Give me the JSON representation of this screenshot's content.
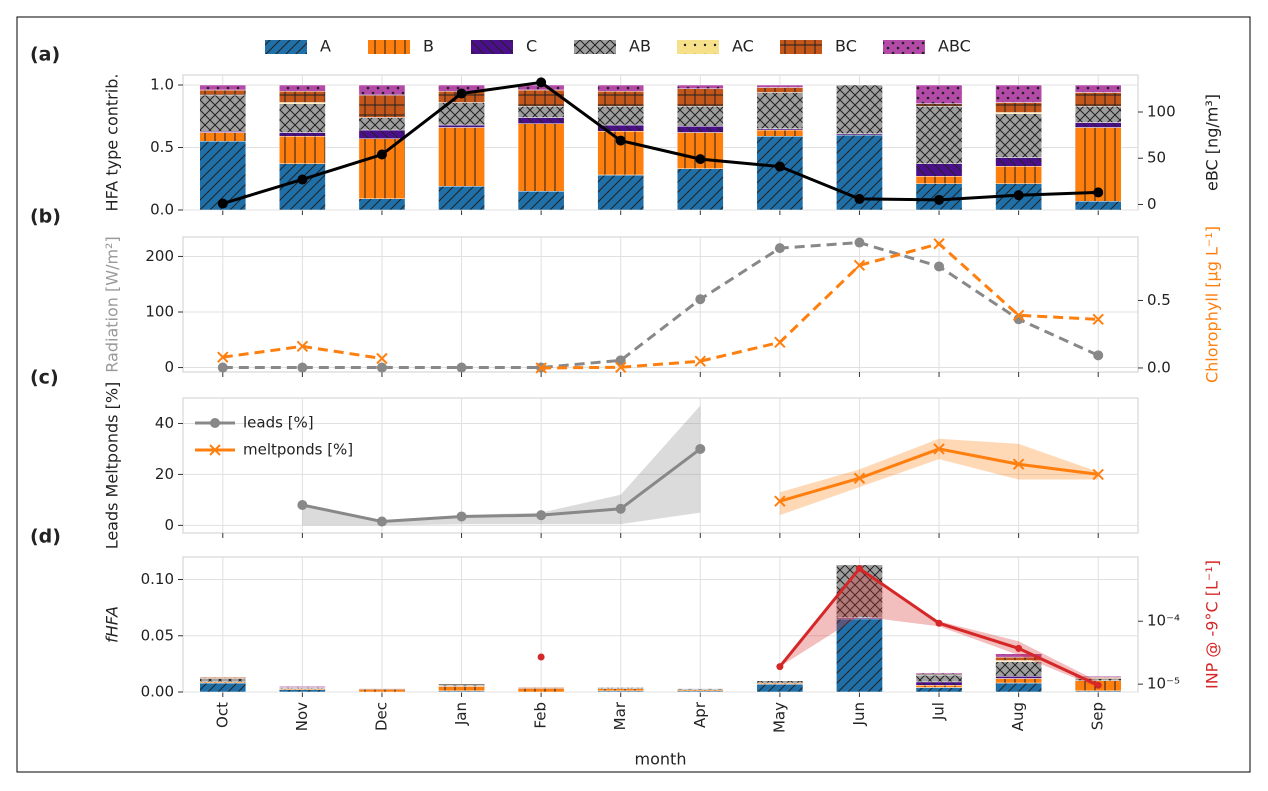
{
  "chart_data": [
    {
      "type": "bar",
      "label": "(a)",
      "stacked": true,
      "y_label": "HFA type contrib.",
      "y2_label": "eBC [ng/m³]",
      "ylim": [
        0,
        1.08
      ],
      "yticks": [
        {
          "value": 0,
          "label": "0.0"
        },
        0.5,
        {
          "value": 1,
          "label": "1.0"
        }
      ],
      "y2lim": [
        -6,
        140
      ],
      "y2ticks": [
        0,
        50,
        100
      ],
      "grid": true,
      "series": [
        {
          "name": "A",
          "color": "#1f6fa8",
          "hatch": "/",
          "values": [
            0.55,
            0.37,
            0.09,
            0.19,
            0.15,
            0.28,
            0.33,
            0.59,
            0.6,
            0.21,
            0.21,
            0.07
          ]
        },
        {
          "name": "B",
          "color": "#ff7f0e",
          "hatch": "|",
          "values": [
            0.07,
            0.22,
            0.48,
            0.47,
            0.54,
            0.35,
            0.29,
            0.05,
            0.0,
            0.06,
            0.14,
            0.59
          ]
        },
        {
          "name": "C",
          "color": "#4b0f8c",
          "hatch": "\\",
          "values": [
            0.01,
            0.03,
            0.07,
            0.02,
            0.05,
            0.05,
            0.05,
            0.01,
            0.01,
            0.1,
            0.07,
            0.04
          ]
        },
        {
          "name": "AB",
          "color": "#9e9e9e",
          "hatch": "x",
          "values": [
            0.29,
            0.23,
            0.1,
            0.18,
            0.09,
            0.15,
            0.16,
            0.29,
            0.39,
            0.46,
            0.35,
            0.13
          ]
        },
        {
          "name": "AC",
          "color": "#f7e08a",
          "hatch": ".",
          "values": [
            0.0,
            0.01,
            0.0,
            0.0,
            0.0,
            0.0,
            0.0,
            0.0,
            0.0,
            0.0,
            0.01,
            0.0
          ]
        },
        {
          "name": "BC",
          "color": "#c4561a",
          "hatch": "+",
          "values": [
            0.04,
            0.09,
            0.18,
            0.09,
            0.13,
            0.12,
            0.14,
            0.04,
            0.0,
            0.02,
            0.08,
            0.11
          ]
        },
        {
          "name": "ABC",
          "color": "#b44aa8",
          "hatch": "o",
          "values": [
            0.04,
            0.05,
            0.08,
            0.05,
            0.04,
            0.05,
            0.03,
            0.02,
            0.0,
            0.15,
            0.14,
            0.06
          ]
        },
        {
          "axis": "y2",
          "color": "#000000",
          "marker": "o",
          "values": [
            1,
            27,
            54,
            120,
            132,
            69,
            49,
            41,
            6,
            5,
            10,
            13
          ]
        }
      ]
    },
    {
      "type": "line",
      "label": "(b)",
      "y_label": "Radiation [W/m²]",
      "y_label_color": "#9a9a9a",
      "y2_label": "Chlorophyll [µg L⁻¹]",
      "y2_label_color": "#ff7f0e",
      "ylim": [
        -8,
        235
      ],
      "yticks": [
        0,
        100,
        200
      ],
      "y2lim": [
        -0.03,
        0.97
      ],
      "y2ticks": [
        {
          "value": 0,
          "label": "0.0"
        },
        0.5
      ],
      "grid": true,
      "series": [
        {
          "color": "#888888",
          "dashed": true,
          "marker": "o",
          "values": [
            0,
            0,
            0,
            0,
            0,
            13,
            123,
            215,
            225,
            182,
            87,
            22
          ]
        },
        {
          "axis": "y2",
          "color": "#ff7f0e",
          "dashed": true,
          "marker": "x",
          "values": [
            0.08,
            0.16,
            0.07,
            null,
            0.0,
            0.005,
            0.05,
            0.19,
            0.76,
            0.92,
            0.39,
            0.36
          ]
        }
      ]
    },
    {
      "type": "line",
      "label": "(c)",
      "y_label": "Leads Meltponds [%]",
      "ylim": [
        -3,
        50
      ],
      "yticks": [
        0,
        20,
        40
      ],
      "grid": true,
      "legend": "upper left",
      "series": [
        {
          "name": "leads [%]",
          "color": "#888888",
          "marker": "o",
          "values": [
            null,
            8,
            1.5,
            3.5,
            4,
            6.5,
            30,
            null,
            null,
            null,
            null,
            null
          ],
          "lower": [
            null,
            0,
            0,
            0.5,
            0.5,
            0.5,
            5,
            null,
            null,
            null,
            null,
            null
          ],
          "upper": [
            null,
            8,
            2,
            4,
            5,
            12,
            47,
            null,
            null,
            null,
            null,
            null
          ]
        },
        {
          "name": "meltponds [%]",
          "color": "#ff7f0e",
          "marker": "x",
          "values": [
            null,
            null,
            null,
            null,
            null,
            null,
            null,
            9.5,
            18.5,
            30,
            24,
            20
          ],
          "lower": [
            null,
            null,
            null,
            null,
            null,
            null,
            null,
            4,
            15,
            26,
            18,
            18
          ],
          "upper": [
            null,
            null,
            null,
            null,
            null,
            null,
            null,
            13,
            22,
            34,
            32,
            21
          ]
        }
      ]
    },
    {
      "type": "bar",
      "label": "(d)",
      "stacked": true,
      "y_label": "fHFA",
      "y2_label": "INP @ -9°C [L⁻¹]",
      "y2_label_color": "#d62728",
      "categories": [
        "Oct",
        "Nov",
        "Dec",
        "Jan",
        "Feb",
        "Mar",
        "Apr",
        "May",
        "Jun",
        "Jul",
        "Aug",
        "Sep"
      ],
      "x_label": "month",
      "ylim": [
        0,
        0.12
      ],
      "yticks": [
        {
          "value": 0,
          "label": "0.00"
        },
        0.05,
        {
          "value": 0.1,
          "label": "0.10"
        }
      ],
      "y2_log": true,
      "y2lim": [
        7.5e-06,
        0.00105
      ],
      "y2ticks": [
        {
          "value": 1e-05,
          "label": "10⁻⁵"
        },
        {
          "value": 0.0001,
          "label": "10⁻⁴"
        }
      ],
      "grid": true,
      "series": [
        {
          "color": "#1f6fa8",
          "hatch": "/",
          "values": [
            0.008,
            0.002,
            0.0,
            0.001,
            0.0,
            0.001,
            0.001,
            0.007,
            0.065,
            0.004,
            0.008,
            0.001
          ]
        },
        {
          "color": "#ff7f0e",
          "hatch": "|",
          "values": [
            0.001,
            0.001,
            0.002,
            0.004,
            0.003,
            0.002,
            0.001,
            0.001,
            0.0,
            0.002,
            0.004,
            0.009
          ]
        },
        {
          "color": "#4b0f8c",
          "hatch": "\\",
          "values": [
            0.0,
            0.0,
            0.0,
            0.0,
            0.0,
            0.0,
            0.0,
            0.0,
            0.001,
            0.003,
            0.002,
            0.0
          ]
        },
        {
          "color": "#9e9e9e",
          "hatch": "x",
          "values": [
            0.003,
            0.001,
            0.0,
            0.001,
            0.0,
            0.001,
            0.001,
            0.002,
            0.047,
            0.006,
            0.013,
            0.002
          ]
        },
        {
          "color": "#f7e08a",
          "hatch": ".",
          "values": [
            0.0,
            0.0,
            0.0,
            0.0,
            0.0,
            0.0,
            0.0,
            0.0,
            0.0,
            0.0,
            0.001,
            0.0
          ]
        },
        {
          "color": "#c4561a",
          "hatch": "+",
          "values": [
            0.001,
            0.0,
            0.001,
            0.001,
            0.001,
            0.0,
            0.0,
            0.0,
            0.0,
            0.001,
            0.003,
            0.001
          ]
        },
        {
          "color": "#b44aa8",
          "hatch": "o",
          "values": [
            0.0,
            0.001,
            0.0,
            0.0,
            0.0,
            0.0,
            0.0,
            0.0,
            0.0,
            0.001,
            0.003,
            0.001
          ]
        },
        {
          "axis": "y2",
          "color": "#d62728",
          "marker": "o",
          "values": [
            null,
            null,
            null,
            null,
            2.7e-05,
            null,
            null,
            1.9e-05,
            0.00069,
            9.3e-05,
            3.7e-05,
            9.6e-06
          ],
          "lower": [
            null,
            null,
            null,
            null,
            null,
            null,
            null,
            1.9e-05,
            0.00012,
            8.3e-05,
            2.9e-05,
            8.8e-06
          ],
          "upper": [
            null,
            null,
            null,
            null,
            null,
            null,
            null,
            1.9e-05,
            0.0007,
            0.0001,
            4.8e-05,
            1.1e-05
          ]
        }
      ]
    }
  ]
}
